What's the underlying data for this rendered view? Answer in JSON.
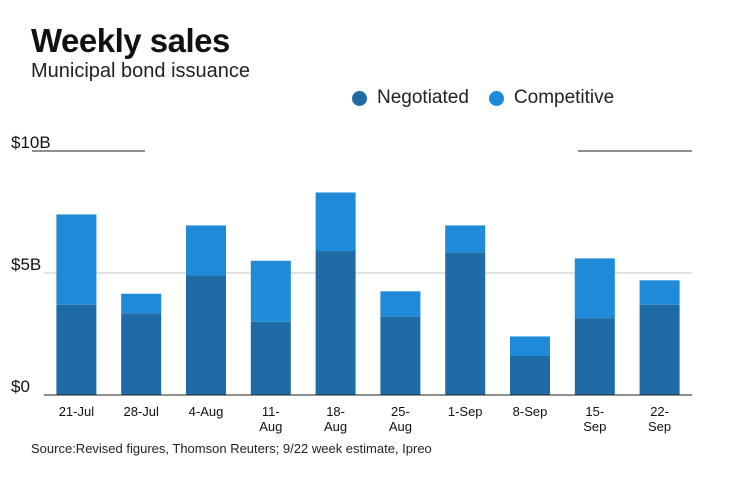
{
  "chart_data": {
    "type": "bar",
    "stacked": true,
    "title": "Weekly sales",
    "subtitle": "Municipal bond issuance",
    "xlabel": "",
    "ylabel": "",
    "ylim": [
      0,
      10
    ],
    "yticks": [
      {
        "value": 0,
        "label": "$0"
      },
      {
        "value": 5,
        "label": "$5B"
      },
      {
        "value": 10,
        "label": "$10B"
      }
    ],
    "categories": [
      [
        "21-Jul"
      ],
      [
        "28-Jul"
      ],
      [
        "4-Aug"
      ],
      [
        "11-",
        "Aug"
      ],
      [
        "18-",
        "Aug"
      ],
      [
        "25-",
        "Aug"
      ],
      [
        "1-Sep"
      ],
      [
        "8-Sep"
      ],
      [
        "15-",
        "Sep"
      ],
      [
        "22-",
        "Sep"
      ]
    ],
    "series": [
      {
        "name": "Negotiated",
        "color": "#1f6ba5",
        "values": [
          3.7,
          3.35,
          4.9,
          3.0,
          5.9,
          3.2,
          5.85,
          1.6,
          3.15,
          3.7
        ]
      },
      {
        "name": "Competitive",
        "color": "#1e8ad8",
        "values": [
          3.7,
          0.8,
          2.05,
          2.5,
          2.4,
          1.05,
          1.1,
          0.8,
          2.45,
          1.0
        ]
      }
    ],
    "legend": "top-right",
    "grid": true
  },
  "source": "Source:Revised figures, Thomson Reuters; 9/22 week estimate, Ipreo"
}
